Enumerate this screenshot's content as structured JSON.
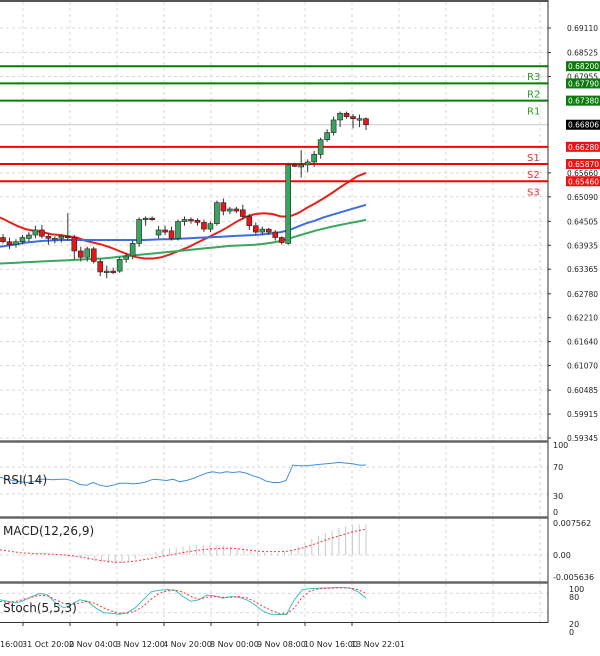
{
  "chart_data": [
    {
      "type": "candlestick",
      "title": "",
      "panel": "price",
      "y_axis_ticks": [
        "0.69110",
        "0.68525",
        "0.67955",
        "0.65660",
        "0.65090",
        "0.64505",
        "0.63935",
        "0.63365",
        "0.62780",
        "0.62210",
        "0.61640",
        "0.61070",
        "0.60485",
        "0.59915",
        "0.59345"
      ],
      "ylim": [
        0.59345,
        0.694
      ],
      "current_price": "0.66806",
      "levels": [
        {
          "name": "R3",
          "value": "0.68200",
          "color": "#008000"
        },
        {
          "name": "R2",
          "value": "0.67790",
          "color": "#008000"
        },
        {
          "name": "R1",
          "value": "0.67380",
          "color": "#008000"
        },
        {
          "name": "S1",
          "value": "0.66280",
          "color": "#ff0000"
        },
        {
          "name": "S2",
          "value": "0.65870",
          "color": "#ff0000"
        },
        {
          "name": "S3",
          "value": "0.65460",
          "color": "#ff0000"
        }
      ],
      "moving_averages": [
        {
          "name": "MA fast",
          "color": "#e8201a",
          "values": [
            0.646,
            0.645,
            0.644,
            0.6432,
            0.6428,
            0.6425,
            0.642,
            0.6418,
            0.6415,
            0.6412,
            0.6405,
            0.64,
            0.6395,
            0.6388,
            0.638,
            0.6372,
            0.6365,
            0.6362,
            0.6362,
            0.6365,
            0.6372,
            0.638,
            0.6388,
            0.6398,
            0.6408,
            0.6418,
            0.6428,
            0.644,
            0.6452,
            0.6462,
            0.6468,
            0.647,
            0.6468,
            0.6462,
            0.6462,
            0.647,
            0.6482,
            0.6493,
            0.6505,
            0.6518,
            0.6532,
            0.6545,
            0.6558,
            0.6566
          ]
        },
        {
          "name": "MA mid",
          "color": "#3b6fe0",
          "values": [
            0.639,
            0.6393,
            0.6396,
            0.64,
            0.6402,
            0.6404,
            0.6405,
            0.6406,
            0.6406,
            0.6406,
            0.6406,
            0.6406,
            0.6406,
            0.6406,
            0.6406,
            0.6406,
            0.6406,
            0.6406,
            0.6407,
            0.6408,
            0.6408,
            0.6409,
            0.641,
            0.6411,
            0.6412,
            0.6413,
            0.6414,
            0.6415,
            0.6416,
            0.6417,
            0.6418,
            0.642,
            0.6422,
            0.6425,
            0.643,
            0.6438,
            0.6446,
            0.6452,
            0.646,
            0.6466,
            0.6472,
            0.6478,
            0.6484,
            0.649
          ]
        },
        {
          "name": "MA slow",
          "color": "#3aa85a",
          "values": [
            0.635,
            0.6351,
            0.6352,
            0.6353,
            0.6354,
            0.6355,
            0.6356,
            0.6357,
            0.6358,
            0.6359,
            0.636,
            0.6361,
            0.6362,
            0.6364,
            0.6366,
            0.6368,
            0.637,
            0.6372,
            0.6374,
            0.6376,
            0.6378,
            0.638,
            0.6382,
            0.6384,
            0.6386,
            0.6388,
            0.639,
            0.6392,
            0.6393,
            0.6394,
            0.6395,
            0.6397,
            0.64,
            0.6404,
            0.641,
            0.6416,
            0.6422,
            0.6428,
            0.6433,
            0.6438,
            0.6442,
            0.6446,
            0.645,
            0.6454
          ]
        }
      ],
      "candles": [
        {
          "o": 0.6412,
          "h": 0.642,
          "l": 0.6398,
          "c": 0.6402
        },
        {
          "o": 0.6402,
          "h": 0.6412,
          "l": 0.6385,
          "c": 0.6395
        },
        {
          "o": 0.6395,
          "h": 0.6408,
          "l": 0.6388,
          "c": 0.6402
        },
        {
          "o": 0.6402,
          "h": 0.6418,
          "l": 0.6396,
          "c": 0.6412
        },
        {
          "o": 0.641,
          "h": 0.6425,
          "l": 0.6402,
          "c": 0.6418
        },
        {
          "o": 0.6418,
          "h": 0.644,
          "l": 0.641,
          "c": 0.643
        },
        {
          "o": 0.643,
          "h": 0.6442,
          "l": 0.641,
          "c": 0.6415
        },
        {
          "o": 0.6415,
          "h": 0.6422,
          "l": 0.6395,
          "c": 0.641
        },
        {
          "o": 0.641,
          "h": 0.6415,
          "l": 0.6398,
          "c": 0.641
        },
        {
          "o": 0.641,
          "h": 0.642,
          "l": 0.64,
          "c": 0.6415
        },
        {
          "o": 0.6415,
          "h": 0.647,
          "l": 0.6405,
          "c": 0.6412
        },
        {
          "o": 0.6412,
          "h": 0.6418,
          "l": 0.636,
          "c": 0.638
        },
        {
          "o": 0.638,
          "h": 0.639,
          "l": 0.6355,
          "c": 0.6365
        },
        {
          "o": 0.6365,
          "h": 0.639,
          "l": 0.6355,
          "c": 0.6385
        },
        {
          "o": 0.6385,
          "h": 0.639,
          "l": 0.635,
          "c": 0.6355
        },
        {
          "o": 0.6355,
          "h": 0.6362,
          "l": 0.632,
          "c": 0.633
        },
        {
          "o": 0.633,
          "h": 0.6345,
          "l": 0.6315,
          "c": 0.6332
        },
        {
          "o": 0.6332,
          "h": 0.634,
          "l": 0.6325,
          "c": 0.633
        },
        {
          "o": 0.6332,
          "h": 0.6365,
          "l": 0.6328,
          "c": 0.636
        },
        {
          "o": 0.636,
          "h": 0.6375,
          "l": 0.6352,
          "c": 0.6368
        },
        {
          "o": 0.6368,
          "h": 0.6405,
          "l": 0.636,
          "c": 0.6398
        },
        {
          "o": 0.6398,
          "h": 0.646,
          "l": 0.639,
          "c": 0.6455
        },
        {
          "o": 0.6455,
          "h": 0.6462,
          "l": 0.644,
          "c": 0.6458
        },
        {
          "o": 0.6458,
          "h": 0.6462,
          "l": 0.6452,
          "c": 0.6455
        },
        {
          "o": 0.6418,
          "h": 0.644,
          "l": 0.641,
          "c": 0.643
        },
        {
          "o": 0.643,
          "h": 0.644,
          "l": 0.6418,
          "c": 0.6425
        },
        {
          "o": 0.6428,
          "h": 0.6438,
          "l": 0.6405,
          "c": 0.641
        },
        {
          "o": 0.641,
          "h": 0.6455,
          "l": 0.6405,
          "c": 0.645
        },
        {
          "o": 0.645,
          "h": 0.6462,
          "l": 0.644,
          "c": 0.6455
        },
        {
          "o": 0.6455,
          "h": 0.646,
          "l": 0.6445,
          "c": 0.6452
        },
        {
          "o": 0.6453,
          "h": 0.6458,
          "l": 0.644,
          "c": 0.6448
        },
        {
          "o": 0.6448,
          "h": 0.6455,
          "l": 0.6425,
          "c": 0.6432
        },
        {
          "o": 0.6432,
          "h": 0.645,
          "l": 0.6425,
          "c": 0.6445
        },
        {
          "o": 0.6445,
          "h": 0.65,
          "l": 0.644,
          "c": 0.6495
        },
        {
          "o": 0.6495,
          "h": 0.6505,
          "l": 0.6465,
          "c": 0.6475
        },
        {
          "o": 0.6475,
          "h": 0.6485,
          "l": 0.6468,
          "c": 0.648
        },
        {
          "o": 0.648,
          "h": 0.6485,
          "l": 0.647,
          "c": 0.6475
        },
        {
          "o": 0.6478,
          "h": 0.649,
          "l": 0.6455,
          "c": 0.6462
        },
        {
          "o": 0.6462,
          "h": 0.6468,
          "l": 0.643,
          "c": 0.644
        },
        {
          "o": 0.644,
          "h": 0.6448,
          "l": 0.642,
          "c": 0.6425
        },
        {
          "o": 0.6425,
          "h": 0.6438,
          "l": 0.6418,
          "c": 0.6432
        },
        {
          "o": 0.6432,
          "h": 0.6435,
          "l": 0.6418,
          "c": 0.6425
        },
        {
          "o": 0.6425,
          "h": 0.643,
          "l": 0.6405,
          "c": 0.6412
        },
        {
          "o": 0.6412,
          "h": 0.6415,
          "l": 0.6395,
          "c": 0.64
        },
        {
          "o": 0.6398,
          "h": 0.659,
          "l": 0.6395,
          "c": 0.6585
        },
        {
          "o": 0.6585,
          "h": 0.659,
          "l": 0.658,
          "c": 0.6582
        },
        {
          "o": 0.658,
          "h": 0.662,
          "l": 0.6555,
          "c": 0.6585
        },
        {
          "o": 0.6585,
          "h": 0.6598,
          "l": 0.6568,
          "c": 0.6592
        },
        {
          "o": 0.6592,
          "h": 0.6618,
          "l": 0.658,
          "c": 0.661
        },
        {
          "o": 0.661,
          "h": 0.665,
          "l": 0.66,
          "c": 0.6645
        },
        {
          "o": 0.6645,
          "h": 0.667,
          "l": 0.664,
          "c": 0.6662
        },
        {
          "o": 0.6662,
          "h": 0.67,
          "l": 0.6655,
          "c": 0.6692
        },
        {
          "o": 0.6692,
          "h": 0.6712,
          "l": 0.6675,
          "c": 0.6708
        },
        {
          "o": 0.6708,
          "h": 0.6712,
          "l": 0.6695,
          "c": 0.67
        },
        {
          "o": 0.67,
          "h": 0.6706,
          "l": 0.6672,
          "c": 0.6695
        },
        {
          "o": 0.6695,
          "h": 0.6705,
          "l": 0.6675,
          "c": 0.6695
        },
        {
          "o": 0.6695,
          "h": 0.6698,
          "l": 0.6668,
          "c": 0.66806
        }
      ]
    },
    {
      "type": "line",
      "panel": "rsi",
      "title": "RSI(14)",
      "y_axis_ticks": [
        "100",
        "70",
        "30",
        "0"
      ],
      "ylim": [
        0,
        100
      ],
      "series": [
        {
          "name": "RSI(14)",
          "color": "#3d8fe0",
          "values": [
            55,
            52,
            50,
            48,
            47,
            48,
            52,
            52,
            51,
            52,
            52,
            49,
            44,
            43,
            47,
            43,
            41,
            43,
            46,
            46,
            45,
            46,
            48,
            52,
            51,
            50,
            52,
            48,
            50,
            53,
            57,
            61,
            63,
            61,
            63,
            62,
            63,
            61,
            57,
            54,
            49,
            47,
            47,
            50,
            73,
            72,
            72,
            73,
            74,
            75,
            76,
            77,
            76,
            75,
            73,
            73
          ]
        }
      ]
    },
    {
      "type": "bar",
      "panel": "macd",
      "title": "MACD(12,26,9)",
      "y_axis_ticks": [
        "0.007562",
        "0.00",
        "-0.005636"
      ],
      "ylim": [
        -0.005636,
        0.007562
      ],
      "series": [
        {
          "name": "MACD histogram",
          "color": "#c8c8c8",
          "values": [
            0,
            0,
            0,
            0,
            0,
            0,
            0,
            0,
            0,
            0,
            0,
            -0.0003,
            -0.0008,
            -0.0012,
            -0.0015,
            -0.0018,
            -0.002,
            -0.0021,
            -0.0019,
            -0.0015,
            -0.001,
            -0.0002,
            0.0003,
            0.0008,
            0.0012,
            0.0016,
            0.0018,
            0.002,
            0.0022,
            0.0023,
            0.0024,
            0.0024,
            0.0023,
            0.0022,
            0.002,
            0.0017,
            0.0014,
            0.0011,
            0.0008,
            0.0006,
            0.0004,
            0.0005,
            0.0008,
            0.0012,
            0.002,
            0.003,
            0.0038,
            0.0045,
            0.0052,
            0.0058,
            0.0064,
            0.0068,
            0.0071,
            0.0072,
            0.0072
          ]
        },
        {
          "name": "Signal",
          "color": "#ff3333",
          "values": [
            0.0012,
            0.001,
            0.0007,
            0.0005,
            0.0004,
            0.0003,
            0.0003,
            0.0002,
            0.0001,
            0,
            -0.0002,
            -0.0004,
            -0.0007,
            -0.001,
            -0.0013,
            -0.0015,
            -0.0017,
            -0.0017,
            -0.0016,
            -0.0014,
            -0.0011,
            -0.0008,
            -0.0005,
            -0.0002,
            0.0001,
            0.0004,
            0.0007,
            0.001,
            0.0012,
            0.0014,
            0.0015,
            0.0016,
            0.0016,
            0.0015,
            0.0013,
            0.0011,
            0.0009,
            0.0008,
            0.0008,
            0.0008,
            0.0009,
            0.0012,
            0.0016,
            0.0021,
            0.0027,
            0.0033,
            0.0039,
            0.0044,
            0.0049,
            0.0054,
            0.0058,
            0.0061
          ]
        }
      ]
    },
    {
      "type": "line",
      "panel": "stoch",
      "title": "Stoch(5,5,3)",
      "y_axis_ticks": [
        "100",
        "80",
        "20",
        "0"
      ],
      "ylim": [
        0,
        100
      ],
      "series": [
        {
          "name": "%K",
          "color": "#40c0c0",
          "values": [
            60,
            55,
            50,
            58,
            70,
            80,
            75,
            50,
            35,
            45,
            60,
            55,
            35,
            20,
            18,
            15,
            20,
            35,
            60,
            85,
            90,
            92,
            90,
            70,
            55,
            60,
            75,
            72,
            65,
            70,
            68,
            60,
            45,
            25,
            15,
            14,
            14,
            60,
            92,
            95,
            96,
            97,
            98,
            98,
            97,
            85,
            65
          ]
        },
        {
          "name": "%D",
          "color": "#ff3333",
          "values": [
            55,
            52,
            55,
            62,
            68,
            74,
            72,
            60,
            48,
            45,
            50,
            55,
            48,
            35,
            25,
            18,
            18,
            25,
            40,
            62,
            80,
            88,
            90,
            84,
            70,
            62,
            68,
            70,
            68,
            68,
            70,
            66,
            55,
            40,
            28,
            18,
            15,
            35,
            68,
            88,
            94,
            96,
            97,
            98,
            97,
            92,
            80
          ]
        }
      ]
    }
  ],
  "price_axis": {
    "labels": [
      {
        "text": "0.69110",
        "price": 0.6911
      },
      {
        "text": "0.68525",
        "price": 0.68525
      },
      {
        "text": "0.67955",
        "price": 0.67955
      },
      {
        "text": "0.65660",
        "price": 0.6566
      },
      {
        "text": "0.65090",
        "price": 0.6509
      },
      {
        "text": "0.64505",
        "price": 0.64505
      },
      {
        "text": "0.63935",
        "price": 0.63935
      },
      {
        "text": "0.63365",
        "price": 0.63365
      },
      {
        "text": "0.62780",
        "price": 0.6278
      },
      {
        "text": "0.62210",
        "price": 0.6221
      },
      {
        "text": "0.61640",
        "price": 0.6164
      },
      {
        "text": "0.61070",
        "price": 0.6107
      },
      {
        "text": "0.60485",
        "price": 0.60485
      },
      {
        "text": "0.59915",
        "price": 0.59915
      },
      {
        "text": "0.59345",
        "price": 0.59345
      }
    ],
    "current_price_label": "0.66806"
  },
  "time_axis": {
    "labels": [
      "16:00",
      "31 Oct 20:00",
      "2 Nov 04:00",
      "3 Nov 12:00",
      "4 Nov 20:00",
      "8 Nov 00:00",
      "9 Nov 08:00",
      "10 Nov 16:00",
      "13 Nov 22:01"
    ]
  },
  "indicators": {
    "rsi": {
      "label": "RSI(14)",
      "ticks": [
        "100",
        "70",
        "30",
        "0"
      ]
    },
    "macd": {
      "label": "MACD(12,26,9)",
      "ticks": [
        "0.007562",
        "0.00",
        "-0.005636"
      ]
    },
    "stoch": {
      "label": "Stoch(5,5,3)",
      "ticks": [
        "100",
        "80",
        "20",
        "0"
      ]
    }
  },
  "colors": {
    "bull_candle": "#3aa35f",
    "bear_candle": "#e01818",
    "resistance": "#008000",
    "support": "#ff0000",
    "grid": "#d8d8d8",
    "frame": "#555555",
    "current_price_bg": "#000000"
  }
}
